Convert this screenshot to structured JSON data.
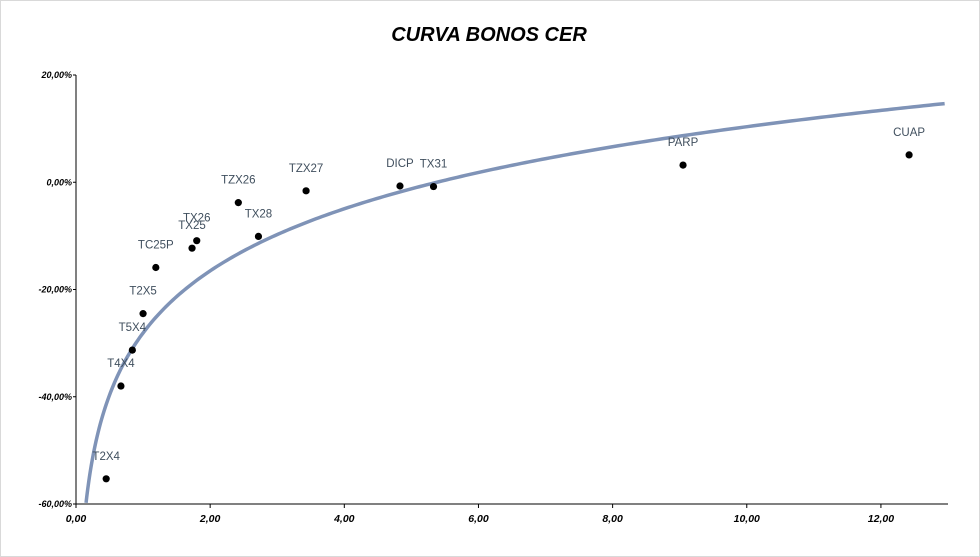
{
  "chart_data": {
    "type": "scatter",
    "title": "CURVA BONOS CER",
    "xlabel": "",
    "ylabel": "",
    "xlim": [
      0,
      13
    ],
    "ylim": [
      -60,
      20
    ],
    "xticks": [
      0,
      2,
      4,
      6,
      8,
      10,
      12
    ],
    "xtick_labels": [
      "0,00",
      "2,00",
      "4,00",
      "6,00",
      "8,00",
      "10,00",
      "12,00"
    ],
    "yticks": [
      -60,
      -40,
      -20,
      0,
      20
    ],
    "ytick_labels": [
      "-60,00%",
      "-40,00%",
      "-20,00%",
      "0,00%",
      "20,00%"
    ],
    "grid": false,
    "legend": "none",
    "points": [
      {
        "label": "T2X4",
        "x": 0.45,
        "y": -55.3
      },
      {
        "label": "T4X4",
        "x": 0.67,
        "y": -38.0
      },
      {
        "label": "T5X4",
        "x": 0.84,
        "y": -31.3
      },
      {
        "label": "T2X5",
        "x": 1.0,
        "y": -24.5
      },
      {
        "label": "TC25P",
        "x": 1.19,
        "y": -15.9
      },
      {
        "label": "TX25",
        "x": 1.73,
        "y": -12.3
      },
      {
        "label": "TX26",
        "x": 1.8,
        "y": -10.9
      },
      {
        "label": "TX28",
        "x": 2.72,
        "y": -10.1
      },
      {
        "label": "TZX26",
        "x": 2.42,
        "y": -3.8
      },
      {
        "label": "TZX27",
        "x": 3.43,
        "y": -1.6
      },
      {
        "label": "DICP",
        "x": 4.83,
        "y": -0.7
      },
      {
        "label": "TX31",
        "x": 5.33,
        "y": -0.8
      },
      {
        "label": "PARP",
        "x": 9.05,
        "y": 3.2
      },
      {
        "label": "CUAP",
        "x": 12.42,
        "y": 5.1
      }
    ],
    "trendline": {
      "type": "logarithmic",
      "a": -28.1,
      "b": 16.7,
      "x_start": 0.15,
      "x_end": 12.95,
      "color": "#7f93b7"
    },
    "point_color": "#000000",
    "label_color": "#404f5e"
  }
}
